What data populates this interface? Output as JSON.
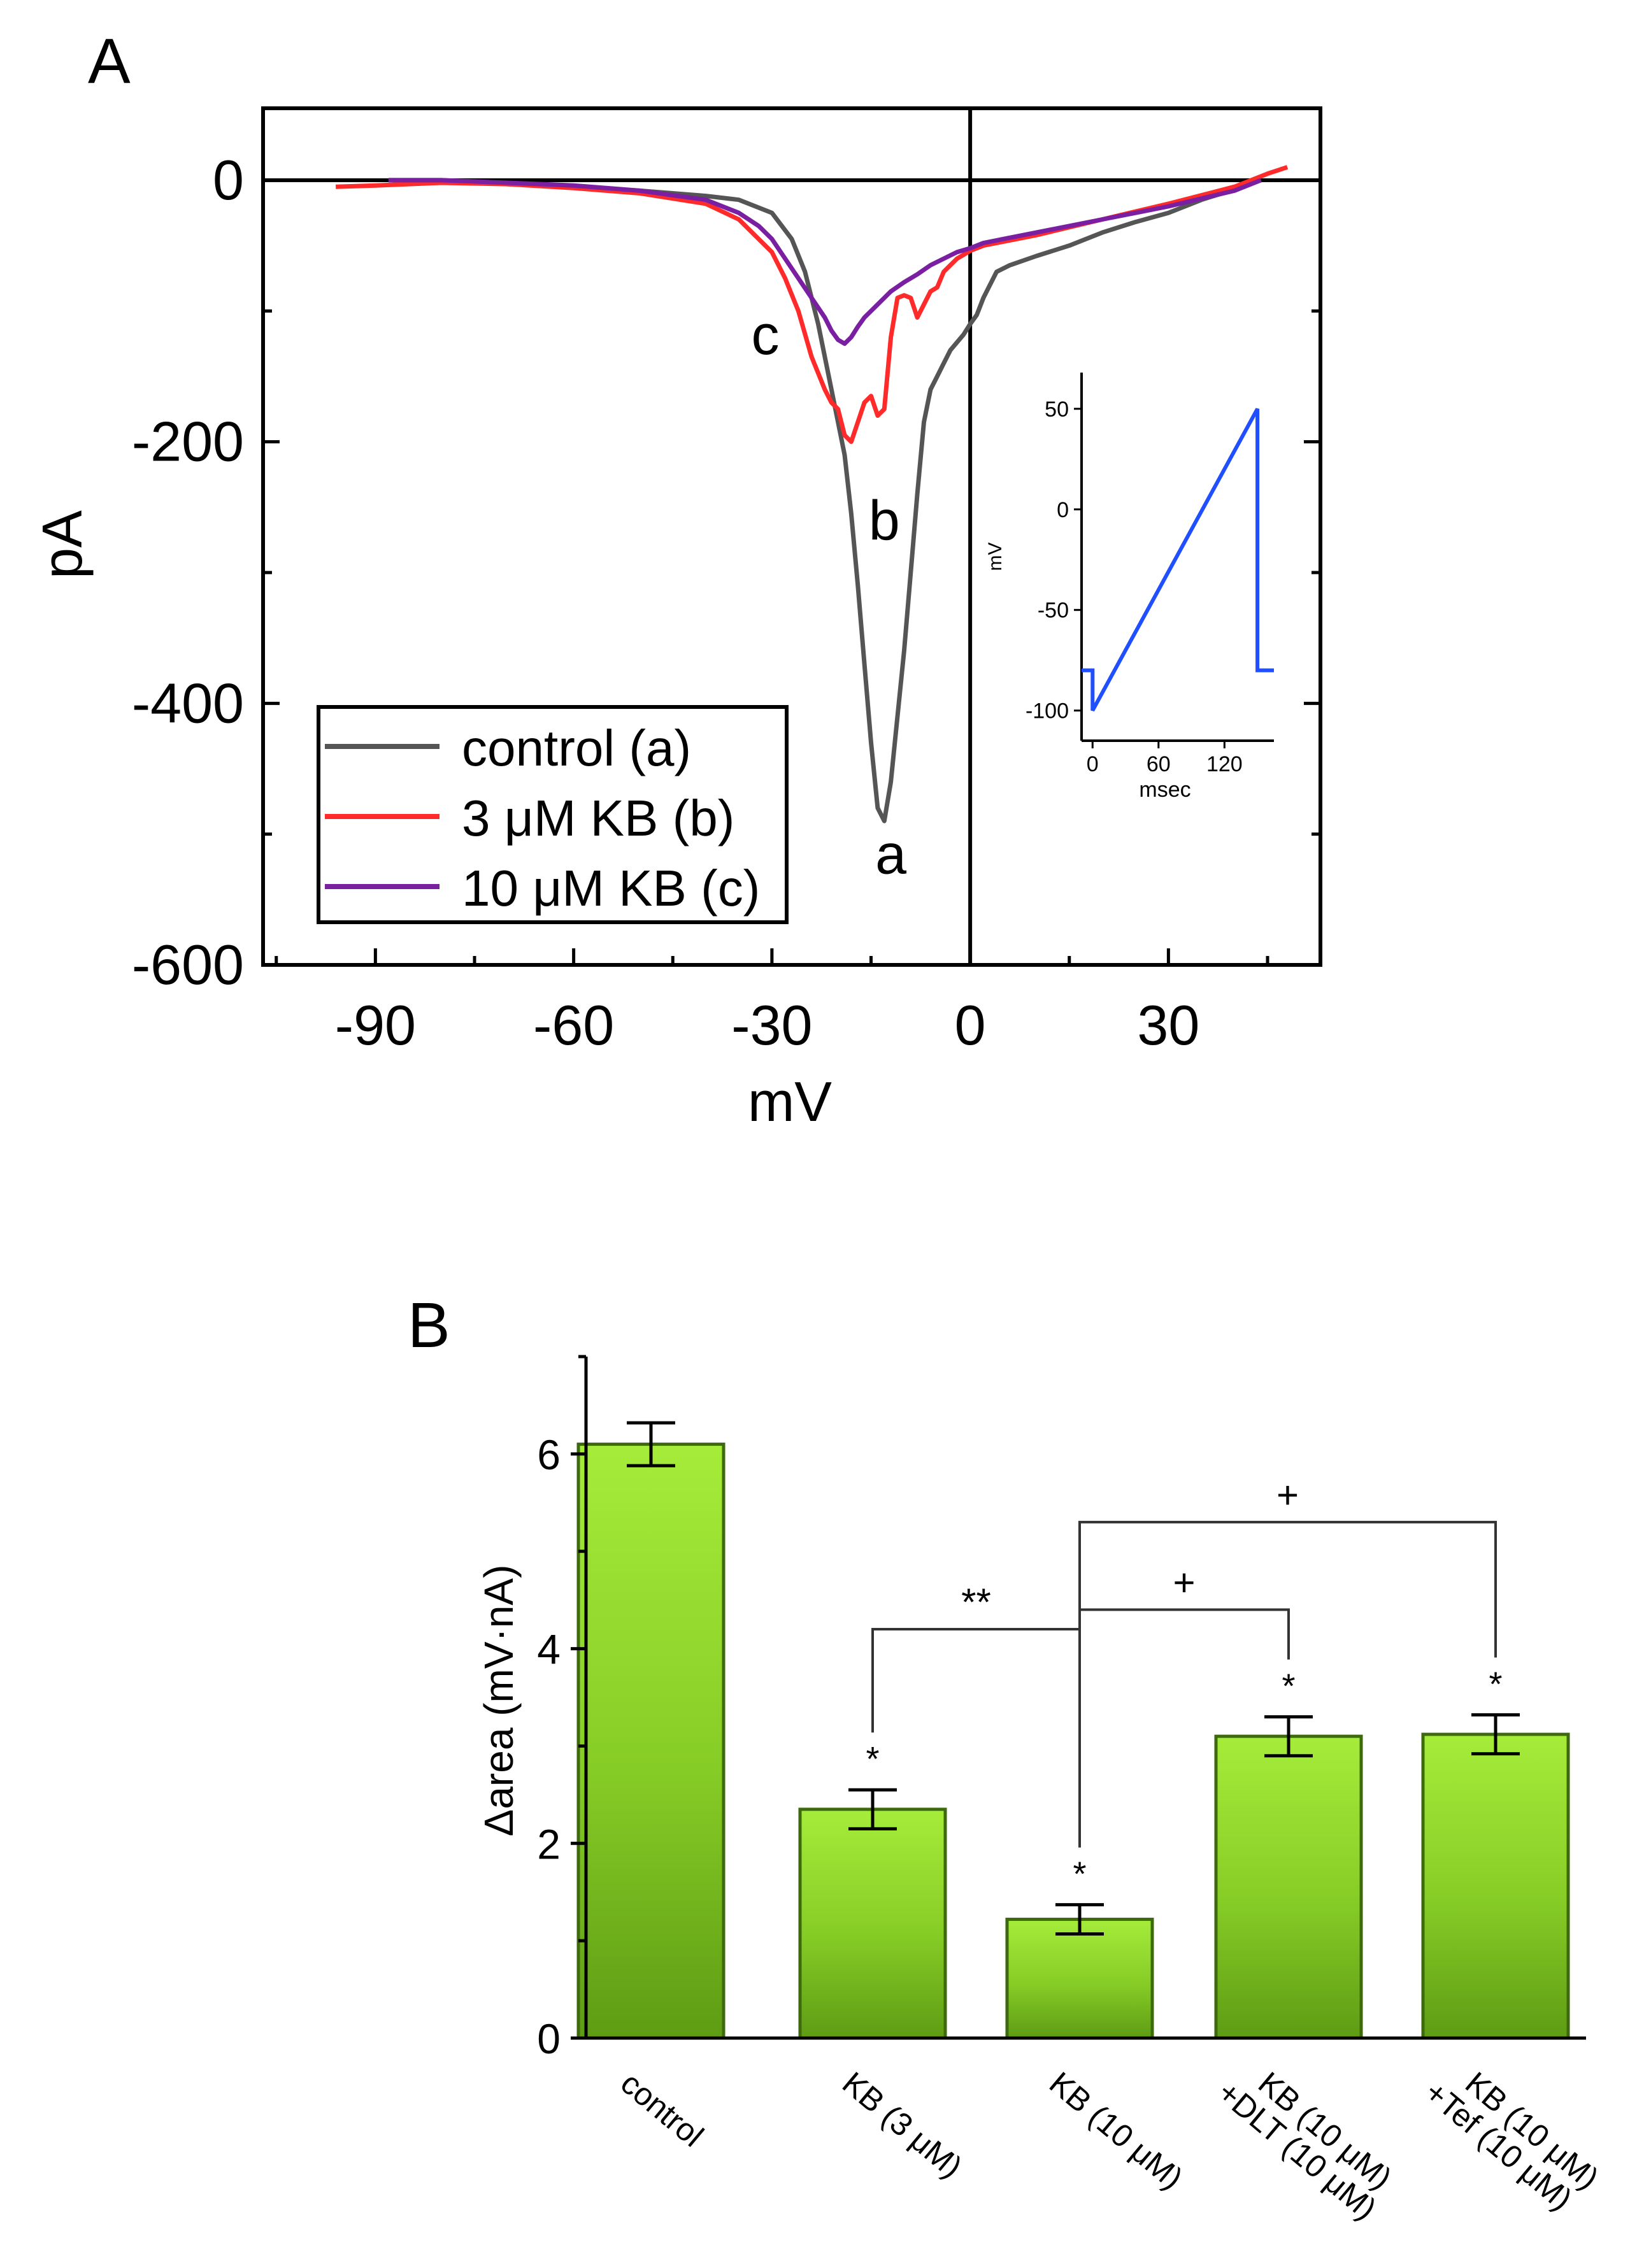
{
  "chart_data": [
    {
      "panel_label": "A",
      "type": "line",
      "xlabel": "mV",
      "ylabel": "pA",
      "xlim": [
        -107,
        53
      ],
      "ylim": [
        -600,
        55
      ],
      "x_ticks": [
        -90,
        -60,
        -30,
        0,
        30
      ],
      "y_ticks": [
        0,
        -200,
        -400,
        -600
      ],
      "x_tick_labels": [
        "-90",
        "-60",
        "-30",
        "0",
        "30"
      ],
      "y_tick_labels": [
        "0",
        "-200",
        "-400",
        "-600"
      ],
      "legend": {
        "position": "bottom-left",
        "entries": [
          "control (a)",
          "3 μM KB (b)",
          "10 μM KB (c)"
        ]
      },
      "series": [
        {
          "name": "control (a)",
          "color": "#555555",
          "annotation": "a",
          "x": [
            -88,
            -80,
            -70,
            -60,
            -50,
            -40,
            -35,
            -30,
            -27,
            -25,
            -23,
            -21,
            -19,
            -18,
            -17,
            -16,
            -15,
            -14,
            -13,
            -12,
            -11,
            -10,
            -9,
            -8,
            -7,
            -6,
            -5,
            -4,
            -3,
            -1,
            0,
            1,
            2,
            4,
            6,
            10,
            15,
            20,
            25,
            30,
            35,
            40,
            44
          ],
          "y": [
            0,
            0,
            -3,
            -5,
            -8,
            -12,
            -15,
            -25,
            -45,
            -70,
            -110,
            -160,
            -210,
            -255,
            -310,
            -370,
            -430,
            -480,
            -490,
            -460,
            -410,
            -360,
            -300,
            -240,
            -185,
            -160,
            -150,
            -140,
            -130,
            -118,
            -110,
            -103,
            -90,
            -70,
            -65,
            -58,
            -50,
            -40,
            -32,
            -25,
            -15,
            -7,
            0
          ]
        },
        {
          "name": "3 μM KB (b)",
          "color": "#ff2a2a",
          "annotation": "b",
          "x": [
            -96,
            -90,
            -80,
            -70,
            -60,
            -50,
            -40,
            -35,
            -32,
            -30,
            -28,
            -26,
            -24,
            -22,
            -21,
            -20,
            -19,
            -18,
            -17,
            -16,
            -15,
            -14,
            -13,
            -12,
            -11,
            -10,
            -9,
            -8,
            -7,
            -6,
            -5,
            -4,
            -3,
            -2,
            -1,
            0,
            1,
            2,
            5,
            10,
            20,
            30,
            40,
            45,
            48
          ],
          "y": [
            -5,
            -4,
            -2,
            -3,
            -6,
            -10,
            -18,
            -30,
            -45,
            -55,
            -75,
            -100,
            -135,
            -160,
            -170,
            -175,
            -195,
            -200,
            -185,
            -170,
            -165,
            -180,
            -175,
            -120,
            -90,
            -88,
            -90,
            -105,
            -95,
            -85,
            -82,
            -70,
            -65,
            -60,
            -57,
            -54,
            -52,
            -50,
            -47,
            -42,
            -30,
            -18,
            -5,
            5,
            10
          ]
        },
        {
          "name": "10 μM KB (c)",
          "color": "#7a1fa2",
          "annotation": "c",
          "x": [
            -88,
            -80,
            -70,
            -60,
            -50,
            -40,
            -35,
            -32,
            -30,
            -28,
            -26,
            -24,
            -22,
            -21,
            -20,
            -19,
            -18,
            -17,
            -16,
            -15,
            -14,
            -12,
            -10,
            -8,
            -6,
            -4,
            -2,
            0,
            2,
            5,
            10,
            20,
            30,
            40,
            44
          ],
          "y": [
            0,
            0,
            -2,
            -4,
            -8,
            -15,
            -25,
            -35,
            -45,
            -60,
            -75,
            -90,
            -105,
            -115,
            -122,
            -125,
            -120,
            -112,
            -105,
            -100,
            -95,
            -85,
            -78,
            -72,
            -65,
            -60,
            -55,
            -52,
            -48,
            -45,
            -40,
            -30,
            -20,
            -8,
            0
          ]
        }
      ],
      "annotations": [
        "a",
        "b",
        "c"
      ],
      "inset": {
        "type": "line",
        "xlabel": "msec",
        "ylabel": "mV",
        "xlim": [
          -10,
          165
        ],
        "ylim": [
          -115,
          68
        ],
        "x_ticks": [
          0,
          60,
          120
        ],
        "y_ticks": [
          50,
          0,
          -50,
          -100
        ],
        "x_tick_labels": [
          "0",
          "60",
          "120"
        ],
        "y_tick_labels": [
          "50",
          "0",
          "-50",
          "-100"
        ],
        "series": [
          {
            "name": "ramp protocol",
            "color": "#1f4fff",
            "x": [
              -10,
              0,
              0,
              150,
              150,
              165
            ],
            "y": [
              -80,
              -80,
              -100,
              50,
              -80,
              -80
            ]
          }
        ]
      }
    },
    {
      "panel_label": "B",
      "type": "bar",
      "ylabel": "Δarea (mV·nA)",
      "ylim": [
        0,
        7
      ],
      "y_ticks": [
        0,
        2,
        4,
        6
      ],
      "y_tick_labels": [
        "0",
        "2",
        "4",
        "6"
      ],
      "categories": [
        [
          "control"
        ],
        [
          "KB (3 μM)"
        ],
        [
          "KB (10 μM)"
        ],
        [
          "KB (10 μM)",
          "+DLT (10 μM)"
        ],
        [
          "KB (10 μM)",
          "+Tef (10 μM)"
        ]
      ],
      "values": [
        6.1,
        2.35,
        1.22,
        3.1,
        3.12
      ],
      "errors": [
        0.22,
        0.2,
        0.15,
        0.2,
        0.2
      ],
      "bar_color": "#8fd42a",
      "significance": [
        "",
        "*",
        "*",
        "*",
        "*"
      ],
      "brackets": [
        {
          "from": 1,
          "to": 2,
          "label": "**",
          "level": 4.2
        },
        {
          "from": 2,
          "to": 3,
          "label": "+",
          "level": 4.4
        },
        {
          "from": 2,
          "to": 4,
          "label": "+",
          "level": 5.3
        }
      ]
    }
  ]
}
